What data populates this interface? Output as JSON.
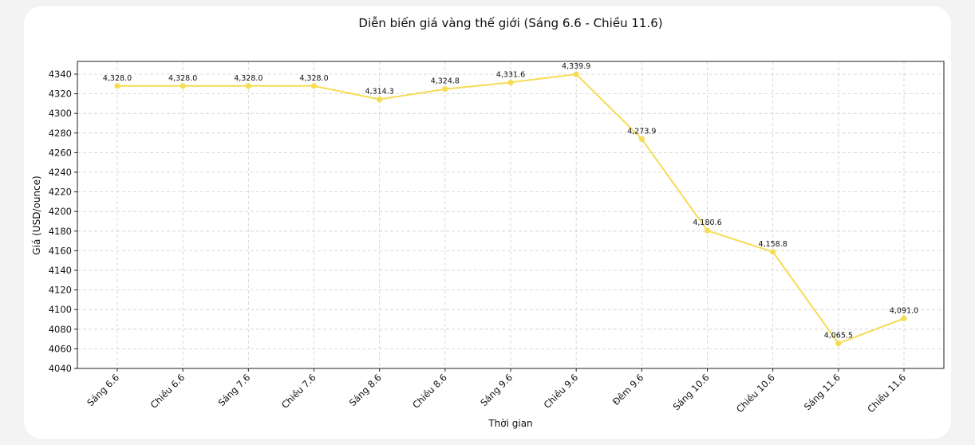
{
  "chart_data": {
    "type": "line",
    "title": "Diễn biến giá vàng thế giới (Sáng 6.6 - Chiều 11.6)",
    "xlabel": "Thời gian",
    "ylabel": "Giá (USD/ounce)",
    "categories": [
      "Sáng 6.6",
      "Chiều 6.6",
      "Sáng 7.6",
      "Chiều 7.6",
      "Sáng 8.6",
      "Chiều 8.6",
      "Sáng 9.6",
      "Chiều 9.6",
      "Đêm 9.6",
      "Sáng 10.6",
      "Chiều 10.6",
      "Sáng 11.6",
      "Chiều 11.6"
    ],
    "values": [
      4328.0,
      4328.0,
      4328.0,
      4328.0,
      4314.3,
      4324.8,
      4331.6,
      4339.9,
      4273.9,
      4180.6,
      4158.8,
      4065.5,
      4091.0
    ],
    "data_labels": [
      "4,328.0",
      "4,328.0",
      "4,328.0",
      "4,328.0",
      "4,314.3",
      "4,324.8",
      "4,331.6",
      "4,339.9",
      "4,273.9",
      "4,180.6",
      "4,158.8",
      "4,065.5",
      "4,091.0"
    ],
    "yticks": [
      4040,
      4060,
      4080,
      4100,
      4120,
      4140,
      4160,
      4180,
      4200,
      4220,
      4240,
      4260,
      4280,
      4300,
      4320,
      4340
    ],
    "ylim": [
      4040,
      4353
    ],
    "grid": true,
    "line_color": "#f5dc54"
  }
}
